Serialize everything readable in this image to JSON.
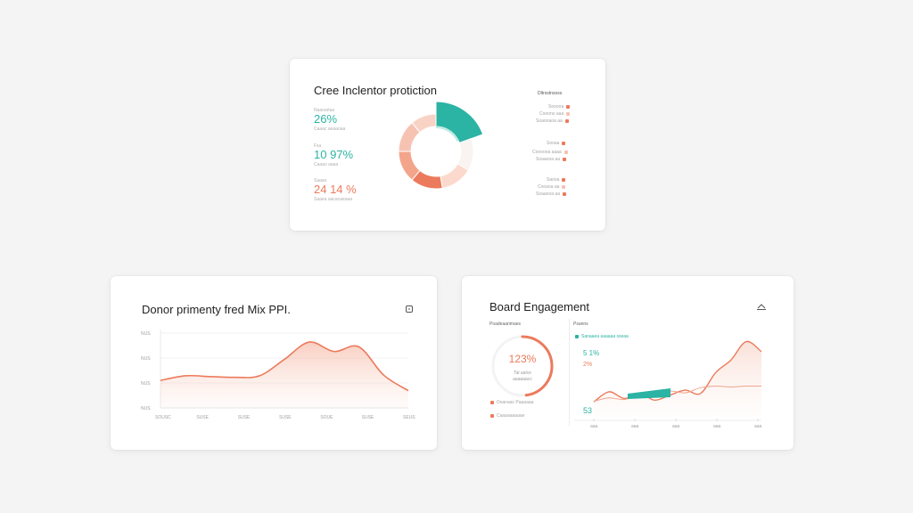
{
  "colors": {
    "teal": "#2bb3a3",
    "coral": "#ec7a5c",
    "peach": "#f6c3b2",
    "light_peach": "#fbe3da"
  },
  "top_card": {
    "title": "Cree Inclentor protiction",
    "legend_title": "Dltrsstnsoss",
    "stats": [
      {
        "label": "Naaoarlaa",
        "value": "26%",
        "sub": "Caaac aeaaoaa",
        "color": "teal"
      },
      {
        "label": "Fsa",
        "value": "10 97%",
        "sub": "Caaao aaaa",
        "color": "teal"
      },
      {
        "label": "Saasa",
        "value": "24 14 %",
        "sub": "Saaea aacacaeaaa",
        "color": "coral"
      }
    ],
    "legend_groups": [
      {
        "items": [
          "Sooooa",
          "Cooono aaa",
          "Soaooaoa aa"
        ]
      },
      {
        "items": [
          "Sooaa",
          "Coooooa aaaa",
          "Soaaooa aa"
        ]
      },
      {
        "items": [
          "Saooa",
          "Cooaoa aa",
          "Soaaooa aa"
        ]
      }
    ],
    "donut_icon": "donut-chart"
  },
  "left_card": {
    "title": "Donor primenty fred Mix PPI.",
    "menu_icon": "export-icon",
    "chart_data": {
      "type": "area",
      "x_ticks": [
        "SOUSC",
        "SUSE",
        "SUSE",
        "SUSE",
        "SOUE",
        "SUSE",
        "SEUS"
      ],
      "y_ticks": [
        "NUS",
        "NUS",
        "NUS",
        "NUS"
      ],
      "series": [
        {
          "values": [
            0.35,
            0.41,
            0.4,
            0.39,
            0.41,
            0.62,
            0.84,
            0.72,
            0.78,
            0.42,
            0.22
          ]
        }
      ],
      "grid": true
    }
  },
  "right_card": {
    "title": "Board Engagement",
    "menu_icon": "collapse-icon",
    "gauge": {
      "header": "Poadeaanmaes",
      "value": "123%",
      "sub1": "Tal aalce",
      "sub2": "aaaaaacc",
      "percent": 0.48,
      "legend": [
        "Doanaac Paaaaaa",
        "Caaaaaaaaae"
      ]
    },
    "trend": {
      "header": "Psanns",
      "sub_header": "Sanaaea aaaaaa sseaa",
      "badge_top": "5 1%",
      "badge_mid": "2%",
      "badge_bottom": "53",
      "x_ticks": [
        "aaa",
        "aaa",
        "aaa",
        "aaa",
        "aaa"
      ],
      "chart_data": {
        "type": "line",
        "series": [
          {
            "name": "",
            "values": [
              0.2,
              0.32,
              0.24,
              0.3,
              0.22,
              0.28,
              0.34,
              0.3,
              0.55,
              0.7,
              0.92,
              0.8
            ]
          },
          {
            "name": "",
            "values": [
              0.08,
              0.12,
              0.1,
              0.16,
              0.14,
              0.2,
              0.18,
              0.24,
              0.26,
              0.25,
              0.26,
              0.26
            ]
          }
        ]
      }
    }
  }
}
